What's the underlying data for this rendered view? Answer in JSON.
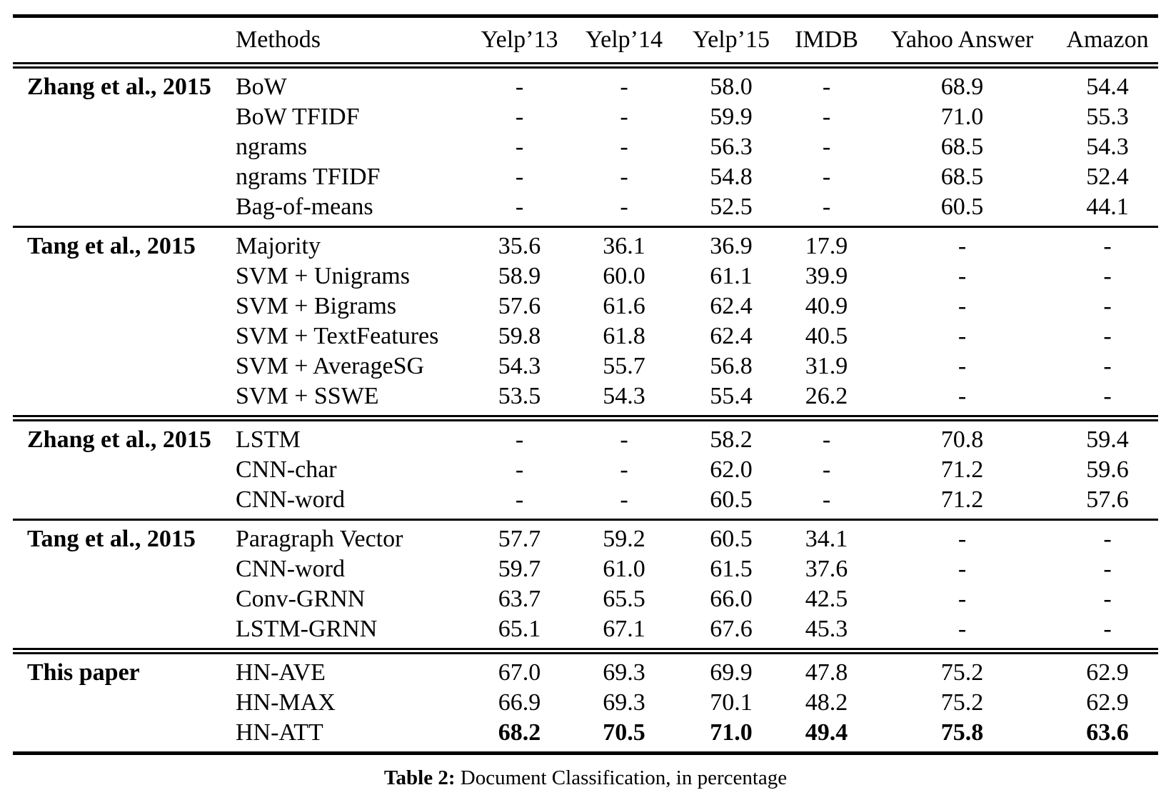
{
  "table": {
    "header": {
      "group_col": "",
      "method_col": "Methods",
      "dataset_cols": [
        "Yelp’13",
        "Yelp’14",
        "Yelp’15",
        "IMDB",
        "Yahoo Answer",
        "Amazon"
      ]
    },
    "groups": [
      {
        "label": "Zhang et al., 2015",
        "divider_above": "none",
        "rows": [
          {
            "method": "BoW",
            "values": [
              "-",
              "-",
              "58.0",
              "-",
              "68.9",
              "54.4"
            ],
            "bold": false
          },
          {
            "method": "BoW TFIDF",
            "values": [
              "-",
              "-",
              "59.9",
              "-",
              "71.0",
              "55.3"
            ],
            "bold": false
          },
          {
            "method": "ngrams",
            "values": [
              "-",
              "-",
              "56.3",
              "-",
              "68.5",
              "54.3"
            ],
            "bold": false
          },
          {
            "method": "ngrams TFIDF",
            "values": [
              "-",
              "-",
              "54.8",
              "-",
              "68.5",
              "52.4"
            ],
            "bold": false
          },
          {
            "method": "Bag-of-means",
            "values": [
              "-",
              "-",
              "52.5",
              "-",
              "60.5",
              "44.1"
            ],
            "bold": false
          }
        ]
      },
      {
        "label": "Tang et al., 2015",
        "divider_above": "single",
        "rows": [
          {
            "method": "Majority",
            "values": [
              "35.6",
              "36.1",
              "36.9",
              "17.9",
              "-",
              "-"
            ],
            "bold": false
          },
          {
            "method": "SVM + Unigrams",
            "values": [
              "58.9",
              "60.0",
              "61.1",
              "39.9",
              "-",
              "-"
            ],
            "bold": false
          },
          {
            "method": "SVM + Bigrams",
            "values": [
              "57.6",
              "61.6",
              "62.4",
              "40.9",
              "-",
              "-"
            ],
            "bold": false
          },
          {
            "method": "SVM + TextFeatures",
            "values": [
              "59.8",
              "61.8",
              "62.4",
              "40.5",
              "-",
              "-"
            ],
            "bold": false
          },
          {
            "method": "SVM + AverageSG",
            "values": [
              "54.3",
              "55.7",
              "56.8",
              "31.9",
              "-",
              "-"
            ],
            "bold": false
          },
          {
            "method": "SVM + SSWE",
            "values": [
              "53.5",
              "54.3",
              "55.4",
              "26.2",
              "-",
              "-"
            ],
            "bold": false
          }
        ]
      },
      {
        "label": "Zhang et al., 2015",
        "divider_above": "double",
        "rows": [
          {
            "method": "LSTM",
            "values": [
              "-",
              "-",
              "58.2",
              "-",
              "70.8",
              "59.4"
            ],
            "bold": false
          },
          {
            "method": "CNN-char",
            "values": [
              "-",
              "-",
              "62.0",
              "-",
              "71.2",
              "59.6"
            ],
            "bold": false
          },
          {
            "method": "CNN-word",
            "values": [
              "-",
              "-",
              "60.5",
              "-",
              "71.2",
              "57.6"
            ],
            "bold": false
          }
        ]
      },
      {
        "label": "Tang et al., 2015",
        "divider_above": "single",
        "rows": [
          {
            "method": "Paragraph Vector",
            "values": [
              "57.7",
              "59.2",
              "60.5",
              "34.1",
              "-",
              "-"
            ],
            "bold": false
          },
          {
            "method": "CNN-word",
            "values": [
              "59.7",
              "61.0",
              "61.5",
              "37.6",
              "-",
              "-"
            ],
            "bold": false
          },
          {
            "method": "Conv-GRNN",
            "values": [
              "63.7",
              "65.5",
              "66.0",
              "42.5",
              "-",
              "-"
            ],
            "bold": false
          },
          {
            "method": "LSTM-GRNN",
            "values": [
              "65.1",
              "67.1",
              "67.6",
              "45.3",
              "-",
              "-"
            ],
            "bold": false
          }
        ]
      },
      {
        "label": "This paper",
        "divider_above": "double",
        "rows": [
          {
            "method": "HN-AVE",
            "values": [
              "67.0",
              "69.3",
              "69.9",
              "47.8",
              "75.2",
              "62.9"
            ],
            "bold": false
          },
          {
            "method": "HN-MAX",
            "values": [
              "66.9",
              "69.3",
              "70.1",
              "48.2",
              "75.2",
              "62.9"
            ],
            "bold": false
          },
          {
            "method": "HN-ATT",
            "values": [
              "68.2",
              "70.5",
              "71.0",
              "49.4",
              "75.8",
              "63.6"
            ],
            "bold": true
          }
        ]
      }
    ]
  },
  "caption": {
    "label": "Table 2:",
    "text": " Document Classification, in percentage"
  }
}
